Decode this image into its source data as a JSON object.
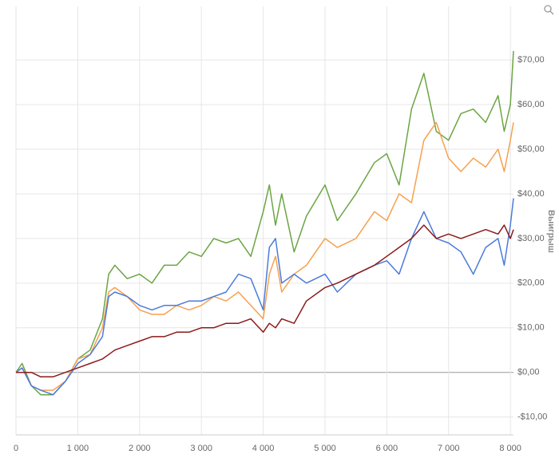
{
  "chart_data": {
    "type": "line",
    "y_axis_label": "Выигрыш",
    "x": [
      0,
      100,
      250,
      400,
      600,
      800,
      1000,
      1200,
      1400,
      1500,
      1600,
      1800,
      2000,
      2200,
      2400,
      2600,
      2800,
      3000,
      3200,
      3400,
      3600,
      3800,
      4000,
      4100,
      4200,
      4300,
      4500,
      4700,
      5000,
      5200,
      5500,
      5800,
      6000,
      6200,
      6400,
      6600,
      6800,
      7000,
      7200,
      7400,
      7600,
      7800,
      7900,
      8000,
      8050
    ],
    "series": [
      {
        "color": "#6ba543",
        "values": [
          0,
          2,
          -3,
          -5,
          -5,
          -2,
          3,
          5,
          12,
          22,
          24,
          21,
          22,
          20,
          24,
          24,
          27,
          26,
          30,
          29,
          30,
          26,
          36,
          42,
          33,
          40,
          27,
          35,
          42,
          34,
          40,
          47,
          49,
          42,
          59,
          67,
          54,
          52,
          58,
          59,
          56,
          62,
          54,
          60,
          72
        ]
      },
      {
        "color": "#f5a14f",
        "values": [
          0,
          1,
          -3,
          -4,
          -4,
          -2,
          3,
          4,
          10,
          18,
          19,
          17,
          14,
          13,
          13,
          15,
          14,
          15,
          17,
          16,
          18,
          15,
          12,
          22,
          26,
          18,
          22,
          24,
          30,
          28,
          30,
          36,
          34,
          40,
          38,
          52,
          56,
          48,
          45,
          48,
          46,
          50,
          45,
          52,
          56
        ]
      },
      {
        "color": "#4a7bdc",
        "values": [
          0,
          1,
          -3,
          -4,
          -5,
          -2,
          2,
          4,
          8,
          17,
          18,
          17,
          15,
          14,
          15,
          15,
          16,
          16,
          17,
          18,
          22,
          21,
          14,
          28,
          30,
          20,
          22,
          20,
          22,
          18,
          22,
          24,
          25,
          22,
          30,
          36,
          30,
          29,
          27,
          22,
          28,
          30,
          24,
          33,
          39
        ]
      },
      {
        "color": "#8b1a1a",
        "values": [
          0,
          0,
          0,
          -1,
          -1,
          0,
          1,
          2,
          3,
          4,
          5,
          6,
          7,
          8,
          8,
          9,
          9,
          10,
          10,
          11,
          11,
          12,
          9,
          11,
          10,
          12,
          11,
          16,
          19,
          20,
          22,
          24,
          26,
          28,
          30,
          33,
          30,
          31,
          30,
          31,
          32,
          31,
          33,
          30,
          32
        ]
      }
    ],
    "xlim": [
      0,
      8050
    ],
    "xticks": [
      0,
      {
        "value": 1000,
        "label": "1 000"
      },
      {
        "value": 2000,
        "label": "2 000"
      },
      {
        "value": 3000,
        "label": "3 000"
      },
      {
        "value": 4000,
        "label": "4 000"
      },
      {
        "value": 5000,
        "label": "5 000"
      },
      {
        "value": 6000,
        "label": "6 000"
      },
      {
        "value": 7000,
        "label": "7 000"
      },
      {
        "value": 8000,
        "label": "8 000"
      }
    ],
    "ylim": [
      -14,
      82
    ],
    "yticks": [
      {
        "value": -10,
        "label": "-$10,00"
      },
      {
        "value": 0,
        "label": "$0,00"
      },
      {
        "value": 10,
        "label": "$10,00"
      },
      {
        "value": 20,
        "label": "$20,00"
      },
      {
        "value": 30,
        "label": "$30,00"
      },
      {
        "value": 40,
        "label": "$40,00"
      },
      {
        "value": 50,
        "label": "$50,00"
      },
      {
        "value": 60,
        "label": "$60,00"
      },
      {
        "value": 70,
        "label": "$70,00"
      }
    ],
    "grid": true
  }
}
